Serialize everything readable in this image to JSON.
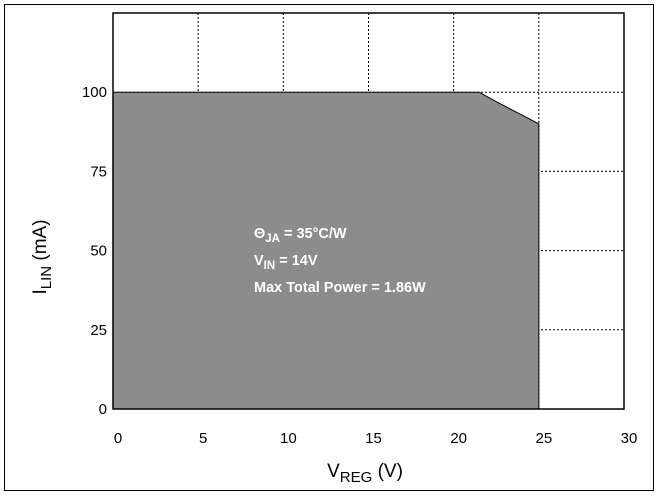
{
  "chart_data": {
    "type": "area",
    "xlim": [
      0,
      30
    ],
    "ylim": [
      0,
      125
    ],
    "x_ticks": [
      "0",
      "5",
      "10",
      "15",
      "20",
      "25",
      "30"
    ],
    "y_ticks": [
      "0",
      "25",
      "50",
      "75",
      "100"
    ],
    "grid": true,
    "xlabel": {
      "main": "V",
      "sub": "REG",
      "unit": " (V)"
    },
    "ylabel": {
      "main": "I",
      "sub": "LIN",
      "unit": " (mA)"
    },
    "series": [
      {
        "x": [
          0,
          21.5,
          22.5,
          23.5,
          24.3,
          25
        ],
        "y": [
          100,
          100,
          97,
          94.2,
          92,
          90
        ]
      }
    ],
    "fill_color": "#8c8c8c",
    "annotations": [
      {
        "main": "Θ",
        "sub": "JA",
        "rest": " = 35°C/W"
      },
      {
        "main": "V",
        "sub": "IN",
        "rest": " = 14V"
      },
      {
        "main": "Max Total Power = 1.86W",
        "sub": "",
        "rest": ""
      }
    ]
  }
}
